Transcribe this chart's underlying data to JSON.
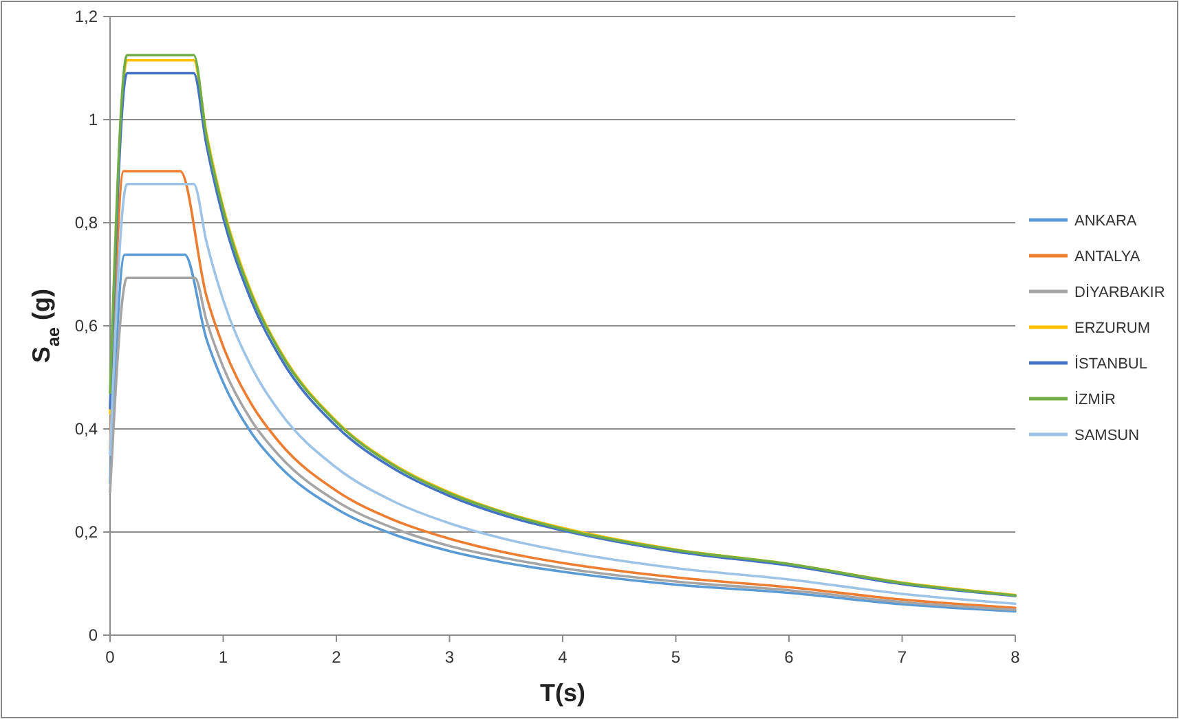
{
  "chart_data": {
    "type": "line",
    "xlabel": "T(s)",
    "ylabel": "S$_{ae}$ (g)",
    "xlim": [
      0,
      8
    ],
    "xticks": [
      0,
      1,
      2,
      3,
      4,
      5,
      6,
      7,
      8
    ],
    "ylim": [
      0,
      1.2
    ],
    "yticks": [
      0,
      {
        "value": 0.2,
        "label": "0,2"
      },
      {
        "value": 0.4,
        "label": "0,4"
      },
      {
        "value": 0.6,
        "label": "0,6"
      },
      {
        "value": 0.8,
        "label": "0,8"
      },
      1,
      {
        "value": 1.2,
        "label": "1,2"
      }
    ],
    "grid": "y",
    "legend": "right",
    "marker": "none",
    "line_style": "solid",
    "series": [
      {
        "name": "ANKARA",
        "color": "#5b9bd5",
        "x": [
          0,
          0.13,
          0.66,
          0.85,
          1,
          1.25,
          1.5,
          2,
          2.5,
          3,
          3.5,
          4,
          5,
          6,
          7,
          8
        ],
        "values": [
          0.295,
          0.738,
          0.738,
          0.576,
          0.49,
          0.392,
          0.327,
          0.245,
          0.196,
          0.163,
          0.14,
          0.123,
          0.098,
          0.082,
          0.06,
          0.046
        ]
      },
      {
        "name": "ANTALYA",
        "color": "#ed7d31",
        "x": [
          0,
          0.12,
          0.62,
          0.85,
          1,
          1.25,
          1.5,
          2,
          2.5,
          3,
          3.5,
          4,
          5,
          6,
          7,
          8
        ],
        "values": [
          0.36,
          0.9,
          0.9,
          0.659,
          0.56,
          0.448,
          0.373,
          0.28,
          0.224,
          0.187,
          0.16,
          0.14,
          0.112,
          0.093,
          0.069,
          0.053
        ]
      },
      {
        "name": "DİYARBAKIR",
        "color": "#a5a5a5",
        "x": [
          0,
          0.15,
          0.75,
          0.85,
          1,
          1.25,
          1.5,
          2,
          2.5,
          3,
          3.5,
          4,
          5,
          6,
          7,
          8
        ],
        "values": [
          0.277,
          0.693,
          0.693,
          0.612,
          0.52,
          0.416,
          0.347,
          0.26,
          0.208,
          0.173,
          0.149,
          0.13,
          0.104,
          0.087,
          0.064,
          0.049
        ]
      },
      {
        "name": "ERZURUM",
        "color": "#ffc000",
        "x": [
          0,
          0.15,
          0.74,
          0.85,
          1,
          1.25,
          1.5,
          2,
          2.5,
          3,
          3.5,
          4,
          5,
          6,
          7,
          8
        ],
        "values": [
          0.43,
          1.115,
          1.115,
          0.976,
          0.83,
          0.664,
          0.553,
          0.415,
          0.332,
          0.277,
          0.237,
          0.208,
          0.166,
          0.138,
          0.102,
          0.078
        ]
      },
      {
        "name": "İSTANBUL",
        "color": "#4472c4",
        "x": [
          0,
          0.15,
          0.74,
          0.85,
          1,
          1.25,
          1.5,
          2,
          2.5,
          3,
          3.5,
          4,
          5,
          6,
          7,
          8
        ],
        "values": [
          0.44,
          1.09,
          1.09,
          0.953,
          0.81,
          0.648,
          0.54,
          0.405,
          0.324,
          0.27,
          0.231,
          0.203,
          0.162,
          0.135,
          0.099,
          0.076
        ]
      },
      {
        "name": "İZMİR",
        "color": "#70ad47",
        "x": [
          0,
          0.15,
          0.74,
          0.85,
          1,
          1.25,
          1.5,
          2,
          2.5,
          3,
          3.5,
          4,
          5,
          6,
          7,
          8
        ],
        "values": [
          0.47,
          1.125,
          1.125,
          0.971,
          0.825,
          0.66,
          0.55,
          0.413,
          0.33,
          0.275,
          0.236,
          0.206,
          0.165,
          0.138,
          0.101,
          0.077
        ]
      },
      {
        "name": "SAMSUN",
        "color": "#9dc3e6",
        "x": [
          0,
          0.15,
          0.74,
          0.85,
          1,
          1.25,
          1.5,
          2,
          2.5,
          3,
          3.5,
          4,
          5,
          6,
          7,
          8
        ],
        "values": [
          0.35,
          0.875,
          0.875,
          0.765,
          0.65,
          0.52,
          0.433,
          0.325,
          0.26,
          0.217,
          0.186,
          0.163,
          0.13,
          0.108,
          0.08,
          0.061
        ]
      }
    ]
  }
}
